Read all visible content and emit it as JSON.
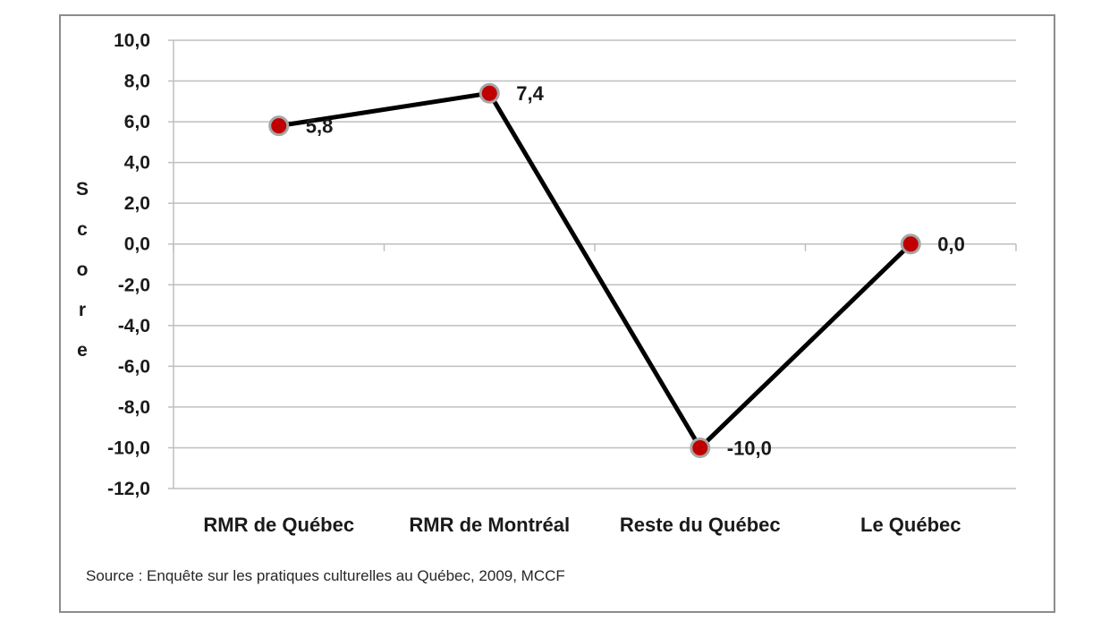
{
  "chart_data": {
    "type": "line",
    "categories": [
      "RMR de Québec",
      "RMR de Montréal",
      "Reste du Québec",
      "Le Québec"
    ],
    "series": [
      {
        "values": [
          5.8,
          7.4,
          -10.0,
          0.0
        ],
        "data_labels": [
          "5,8",
          "7,4",
          "-10,0",
          "0,0"
        ],
        "line_color": "#000000",
        "marker_color": "#c00000",
        "marker_border_color": "#a6a6a6"
      }
    ],
    "xlabel": "",
    "ylabel": "Score",
    "ylim": [
      -12,
      10
    ],
    "yticks": [
      10,
      8,
      6,
      4,
      2,
      0,
      -2,
      -4,
      -6,
      -8,
      -10,
      -12
    ],
    "ytick_labels": [
      "10,0",
      "8,0",
      "6,0",
      "4,0",
      "2,0",
      "0,0",
      "-2,0",
      "-4,0",
      "-6,0",
      "-8,0",
      "-10,0",
      "-12,0"
    ],
    "grid": true,
    "grid_color": "#bfbfbf",
    "legend": "none",
    "source": "Source : Enquête sur les pratiques culturelles au Québec, 2009, MCCF"
  }
}
